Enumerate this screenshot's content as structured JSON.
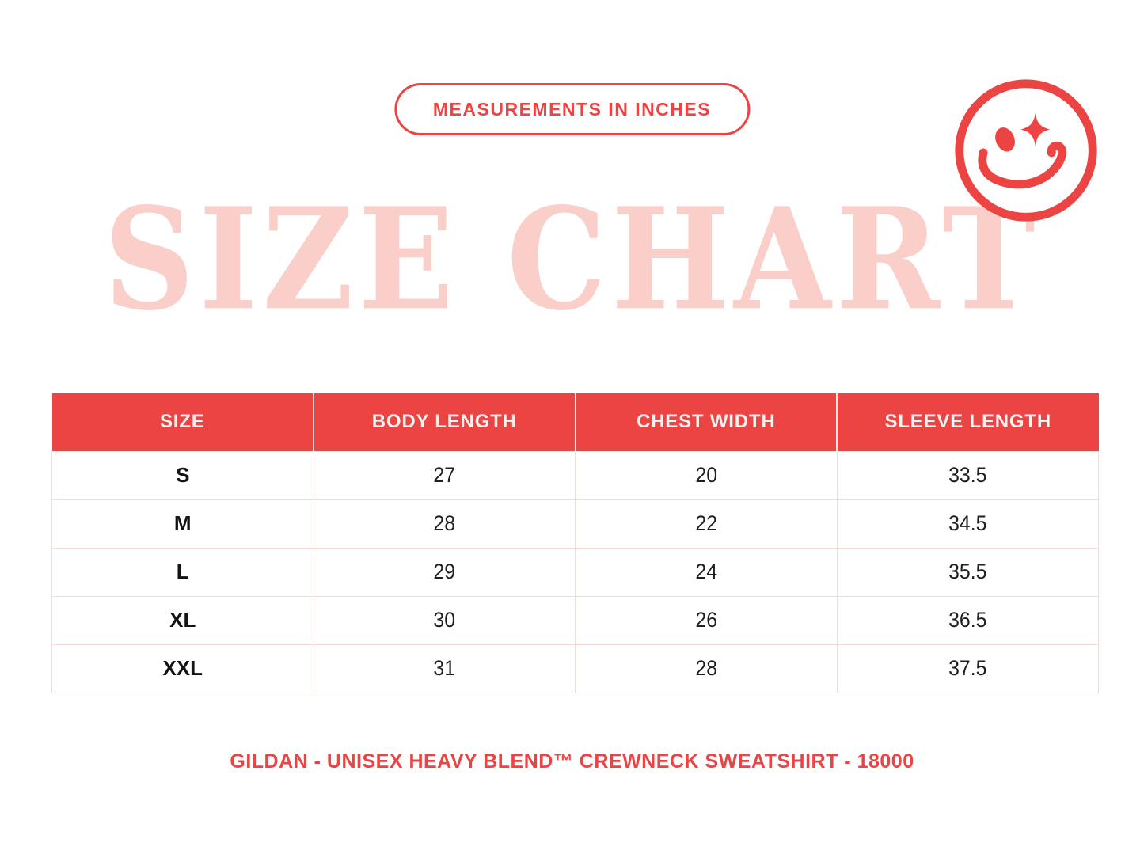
{
  "icons": {
    "smiley": "winking-smiley-with-sparkle-eye-icon"
  },
  "colors": {
    "red": "#EB4442",
    "pink": "#FACFC9",
    "row_border": "#F3DBD6",
    "ink": "#1F1F1F"
  },
  "chart_data": {
    "type": "table",
    "title": "SIZE CHART",
    "subtitle": "MEASUREMENTS IN INCHES",
    "columns": [
      "SIZE",
      "BODY LENGTH",
      "CHEST WIDTH",
      "SLEEVE LENGTH"
    ],
    "rows": [
      [
        "S",
        "27",
        "20",
        "33.5"
      ],
      [
        "M",
        "28",
        "22",
        "34.5"
      ],
      [
        "L",
        "29",
        "24",
        "35.5"
      ],
      [
        "XL",
        "30",
        "26",
        "36.5"
      ],
      [
        "XXL",
        "31",
        "28",
        "37.5"
      ]
    ],
    "footnote": "GILDAN - UNISEX HEAVY BLEND™ CREWNECK SWEATSHIRT - 18000"
  }
}
